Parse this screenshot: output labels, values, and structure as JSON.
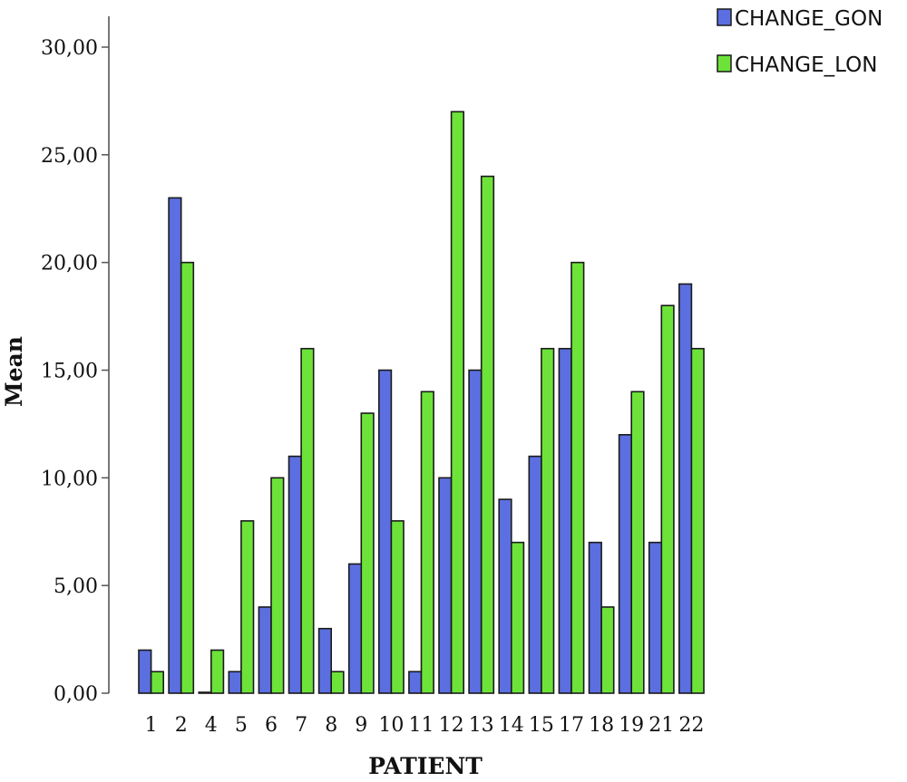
{
  "chart_data": {
    "type": "bar",
    "title": "",
    "xlabel": "PATIENT",
    "ylabel": "Mean",
    "categories": [
      "1",
      "2",
      "4",
      "5",
      "6",
      "7",
      "8",
      "9",
      "10",
      "11",
      "12",
      "13",
      "14",
      "15",
      "17",
      "18",
      "19",
      "21",
      "22"
    ],
    "series": [
      {
        "name": "CHANGE_GON",
        "color": "#5b6fe0",
        "values": [
          2,
          23,
          0,
          1,
          4,
          11,
          3,
          6,
          15,
          1,
          10,
          15,
          9,
          11,
          16,
          7,
          12,
          7,
          19
        ]
      },
      {
        "name": "CHANGE_LON",
        "color": "#6de33a",
        "values": [
          1,
          20,
          2,
          8,
          10,
          16,
          1,
          13,
          8,
          14,
          27,
          24,
          7,
          16,
          20,
          4,
          14,
          18,
          16
        ]
      }
    ],
    "ylim": [
      0,
      30
    ],
    "yticks": [
      "0,00",
      "5,00",
      "10,00",
      "15,00",
      "20,00",
      "25,00",
      "30,00"
    ],
    "ytick_values": [
      0,
      5,
      10,
      15,
      20,
      25,
      30
    ],
    "grid": false,
    "legend_position": "top-right"
  }
}
